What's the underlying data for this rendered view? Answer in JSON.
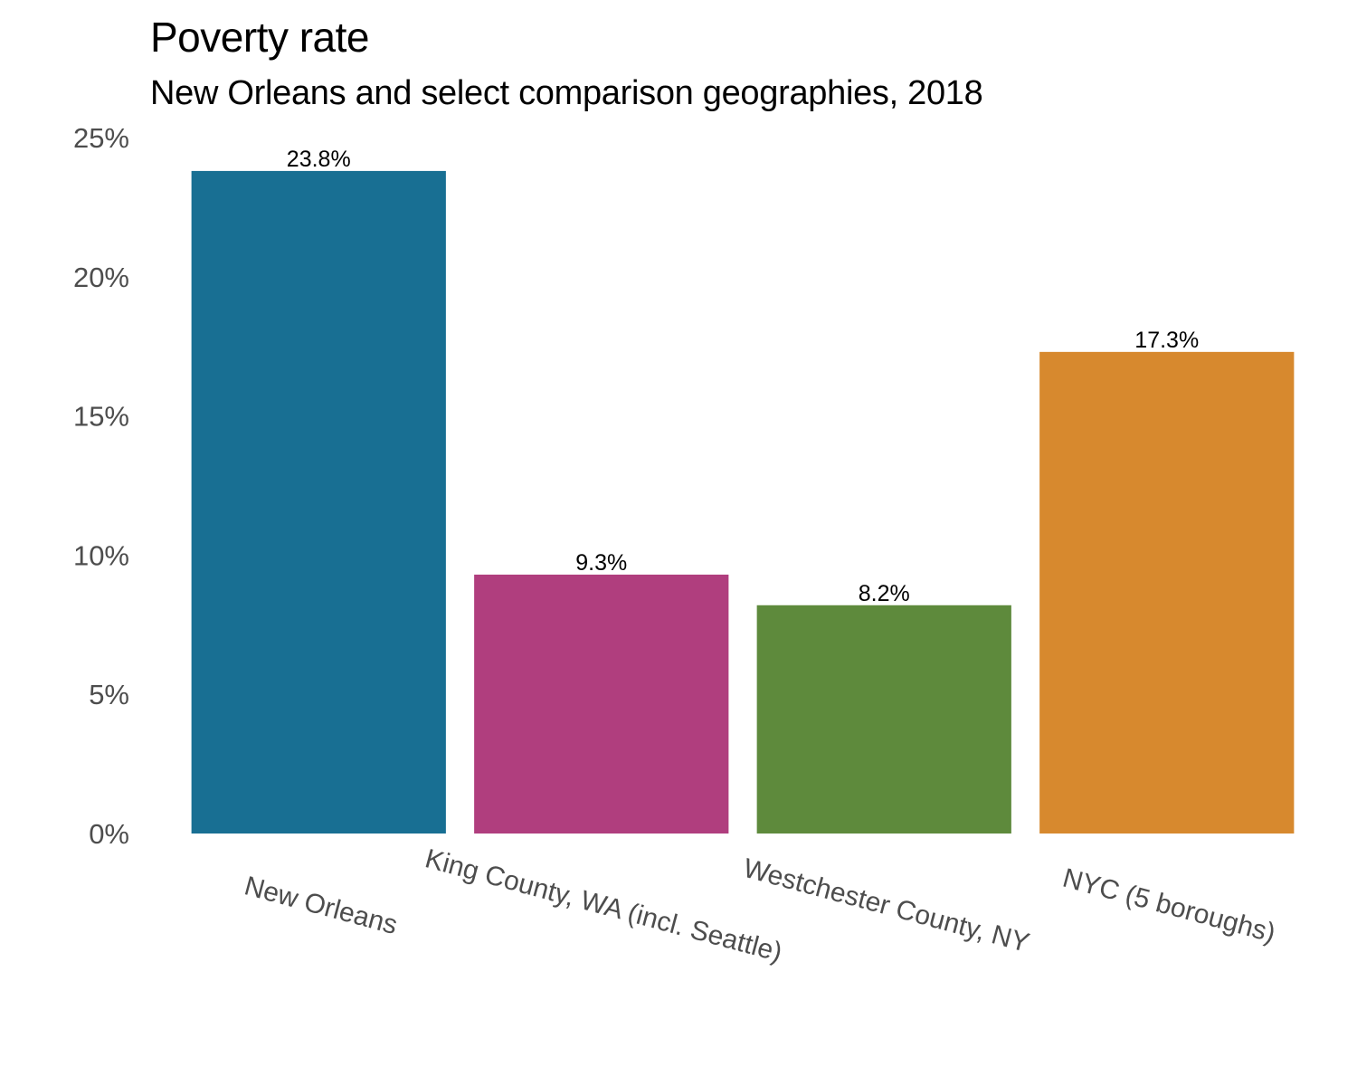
{
  "chart_data": {
    "type": "bar",
    "title": "Poverty rate",
    "subtitle": "New Orleans and select comparison geographies, 2018",
    "xlabel": "",
    "ylabel": "",
    "categories": [
      "New Orleans",
      "King County, WA (incl. Seattle)",
      "Westchester County, NY",
      "NYC (5 boroughs)"
    ],
    "values": [
      23.8,
      9.3,
      8.2,
      17.3
    ],
    "data_labels": [
      "23.8%",
      "9.3%",
      "8.2%",
      "17.3%"
    ],
    "colors": [
      "#186f93",
      "#b03e7e",
      "#5e8a3c",
      "#d7892e"
    ],
    "ylim": [
      0,
      25
    ],
    "yticks": [
      0,
      5,
      10,
      15,
      20,
      25
    ],
    "ytick_labels": [
      "0%",
      "5%",
      "10%",
      "15%",
      "20%",
      "25%"
    ],
    "grid": false,
    "legend": "none",
    "xtick_rotation": "angled"
  }
}
